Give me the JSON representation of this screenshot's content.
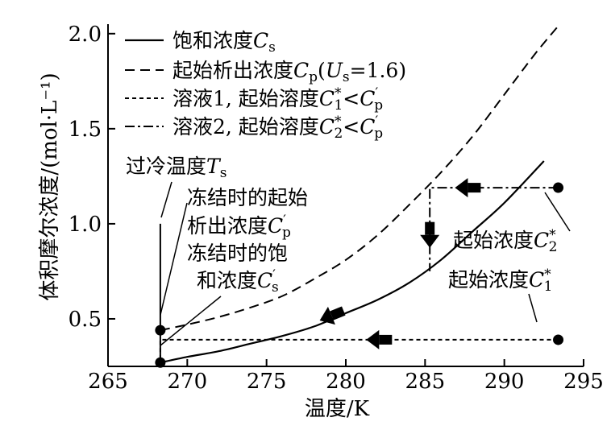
{
  "chart_data": {
    "type": "line",
    "xlabel": "温度/K",
    "ylabel": "体积摩尔浓度/(mol·L⁻¹)",
    "xlim": [
      265,
      295
    ],
    "ylim": [
      0.25,
      2.05
    ],
    "xticks": [
      "265",
      "270",
      "275",
      "280",
      "285",
      "290",
      "295"
    ],
    "xtick_values": [
      265,
      270,
      275,
      280,
      285,
      290,
      295
    ],
    "yticks": [
      "0.5",
      "1.0",
      "1.5",
      "2.0"
    ],
    "ytick_values": [
      0.5,
      1.0,
      1.5,
      2.0
    ],
    "grid": false,
    "legend_position": "top-left",
    "series": [
      {
        "name": "饱和浓度C_s",
        "style": "solid",
        "x": [
          268.3,
          270,
          272,
          274,
          276,
          278,
          280,
          282,
          284,
          286,
          288,
          290,
          292.5
        ],
        "y": [
          0.27,
          0.3,
          0.33,
          0.37,
          0.41,
          0.46,
          0.53,
          0.6,
          0.69,
          0.81,
          0.96,
          1.11,
          1.33
        ]
      },
      {
        "name": "起始析出浓度C_p(U_s=1.6)",
        "style": "dashed",
        "x": [
          268.3,
          270,
          272,
          274,
          276,
          278,
          280,
          282,
          284,
          286,
          288,
          290,
          292,
          293.5
        ],
        "y": [
          0.44,
          0.47,
          0.51,
          0.56,
          0.62,
          0.71,
          0.81,
          0.94,
          1.1,
          1.27,
          1.46,
          1.68,
          1.9,
          2.05
        ]
      },
      {
        "name": "溶液1, 起始溶度C₁*<C′_p",
        "style": "dotted",
        "x": [
          293.4,
          268.3,
          268.3
        ],
        "y": [
          0.39,
          0.39,
          0.27
        ]
      },
      {
        "name": "溶液2, 起始溶度C₂*<C′_p",
        "style": "dashdot",
        "x": [
          293.4,
          285.3,
          285.3
        ],
        "y": [
          1.19,
          1.19,
          0.75
        ]
      }
    ],
    "points": [
      {
        "label": "起始浓度C₂*",
        "x": 293.4,
        "y": 1.19
      },
      {
        "label": "起始浓度C₁*",
        "x": 293.4,
        "y": 0.39
      },
      {
        "label": "冻结时的起始析出浓度C′_p",
        "x": 268.3,
        "y": 0.44
      },
      {
        "label": "冻结时的饱和浓度C′_s",
        "x": 268.3,
        "y": 0.27
      }
    ],
    "undercooling": {
      "label": "过冷温度T_s",
      "x": 268.3,
      "y_top": 1.0,
      "y_bottom": 0.27
    },
    "arrows": [
      {
        "x": 287.8,
        "y": 1.19,
        "direction": "left"
      },
      {
        "x": 285.3,
        "y": 0.95,
        "direction": "down"
      },
      {
        "x": 279.2,
        "y": 0.52,
        "direction": "down-left"
      },
      {
        "x": 282.2,
        "y": 0.39,
        "direction": "left"
      }
    ]
  },
  "legend": [
    {
      "style": "solid",
      "text": "饱和浓度",
      "var": "C",
      "sub": "s",
      "sup": "",
      "prime": "",
      "rest": ""
    },
    {
      "style": "dashed",
      "text": "起始析出浓度",
      "var": "C",
      "sub": "p",
      "sup": "",
      "prime": "",
      "rest": "(U_s=1.6)"
    },
    {
      "style": "dotted",
      "text": "溶液1, 起始溶度",
      "var": "C",
      "sub": "1",
      "sup": "*",
      "prime": "",
      "rest": "<C′_p"
    },
    {
      "style": "dashdot",
      "text": "溶液2, 起始溶度",
      "var": "C",
      "sub": "2",
      "sup": "*",
      "prime": "",
      "rest": "<C′_p"
    }
  ],
  "annotations": {
    "undercool_text": "过冷温度",
    "undercool_var": "T",
    "undercool_sub": "s",
    "frozen_p_line1": "冻结时的起始",
    "frozen_p_line2": "析出浓度",
    "frozen_p_var": "C",
    "frozen_p_sub": "p",
    "frozen_s_line1": "冻结时的饱",
    "frozen_s_line2": "和浓度",
    "frozen_s_var": "C",
    "frozen_s_sub": "s",
    "start2_text": "起始浓度",
    "start2_var": "C",
    "start2_sub": "2",
    "start1_text": "起始浓度",
    "start1_var": "C",
    "start1_sub": "1",
    "star": "*",
    "prime": "′"
  },
  "colors": {
    "ink": "#000000",
    "background": "#ffffff"
  }
}
